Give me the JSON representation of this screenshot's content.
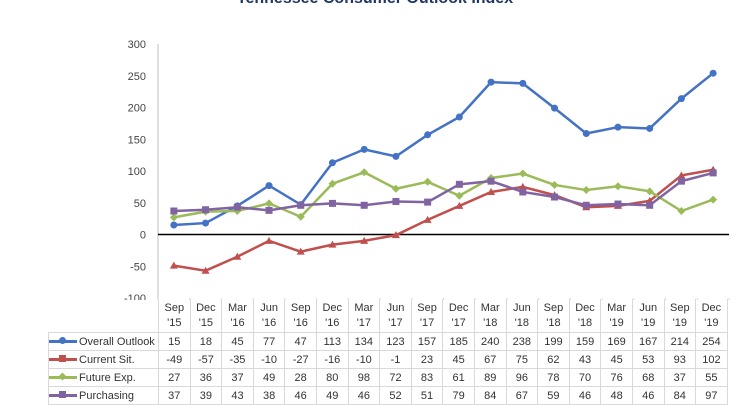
{
  "chart_data": {
    "type": "line",
    "title": "Tennessee Consumer Outlook Index",
    "categories": [
      [
        "Sep",
        "'15"
      ],
      [
        "Dec",
        "'15"
      ],
      [
        "Mar",
        "'16"
      ],
      [
        "Jun",
        "'16"
      ],
      [
        "Sep",
        "'16"
      ],
      [
        "Dec",
        "'16"
      ],
      [
        "Mar",
        "'17"
      ],
      [
        "Jun",
        "'17"
      ],
      [
        "Sep",
        "'17"
      ],
      [
        "Dec",
        "'17"
      ],
      [
        "Mar",
        "'18"
      ],
      [
        "Jun",
        "'18"
      ],
      [
        "Sep",
        "'18"
      ],
      [
        "Dec",
        "'18"
      ],
      [
        "Mar",
        "'19"
      ],
      [
        "Jun",
        "'19"
      ],
      [
        "Sep",
        "'19"
      ],
      [
        "Dec",
        "'19"
      ]
    ],
    "ylim": [
      -100,
      300
    ],
    "yticks": [
      "300",
      "250",
      "200",
      "150",
      "100",
      "50",
      "0",
      "-50",
      "-100"
    ],
    "legend": "bottom-data-table",
    "series": [
      {
        "name": "Overall Outlook",
        "color": "#4472c4",
        "marker": "circle",
        "values": [
          15,
          18,
          45,
          77,
          47,
          113,
          134,
          123,
          157,
          185,
          240,
          238,
          199,
          159,
          169,
          167,
          214,
          254
        ]
      },
      {
        "name": "Current Sit.",
        "color": "#c0504d",
        "marker": "triangle",
        "values": [
          -49,
          -57,
          -35,
          -10,
          -27,
          -16,
          -10,
          -1,
          23,
          45,
          67,
          75,
          62,
          43,
          45,
          53,
          93,
          102
        ]
      },
      {
        "name": "Future Exp.",
        "color": "#9bbb59",
        "marker": "diamond",
        "values": [
          27,
          36,
          37,
          49,
          28,
          80,
          98,
          72,
          83,
          61,
          89,
          96,
          78,
          70,
          76,
          68,
          37,
          55
        ]
      },
      {
        "name": "Purchasing",
        "color": "#8064a2",
        "marker": "square",
        "values": [
          37,
          39,
          43,
          38,
          46,
          49,
          46,
          52,
          51,
          79,
          84,
          67,
          59,
          46,
          48,
          46,
          84,
          97
        ]
      }
    ]
  }
}
